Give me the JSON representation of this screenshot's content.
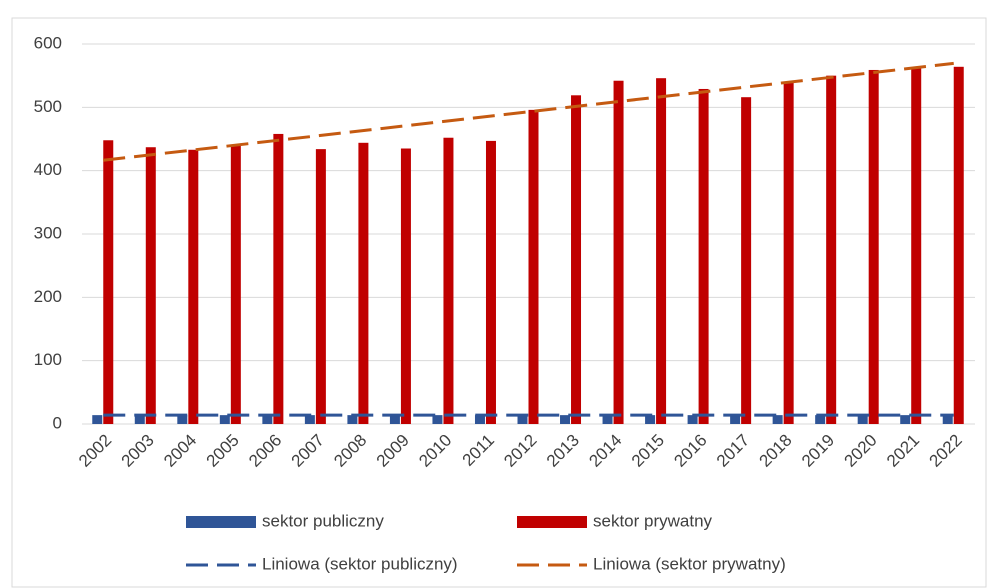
{
  "chart_data": {
    "type": "bar",
    "categories": [
      "2002",
      "2003",
      "2004",
      "2005",
      "2006",
      "2007",
      "2008",
      "2009",
      "2010",
      "2011",
      "2012",
      "2013",
      "2014",
      "2015",
      "2016",
      "2017",
      "2018",
      "2019",
      "2020",
      "2021",
      "2022"
    ],
    "series": [
      {
        "name": "sektor publiczny",
        "color": "#2f5597",
        "values": [
          14,
          14,
          14,
          14,
          14,
          14,
          14,
          14,
          14,
          14,
          14,
          14,
          14,
          14,
          14,
          14,
          14,
          14,
          14,
          14,
          14
        ],
        "trendline": {
          "name": "Liniowa (sektor publiczny)",
          "color": "#2f5597"
        }
      },
      {
        "name": "sektor prywatny",
        "color": "#c00000",
        "values": [
          448,
          437,
          433,
          441,
          458,
          434,
          444,
          435,
          452,
          447,
          496,
          519,
          542,
          546,
          529,
          516,
          539,
          550,
          559,
          563,
          564
        ],
        "trendline": {
          "name": "Liniowa (sektor prywatny)",
          "color": "#c55a11"
        }
      }
    ],
    "ylim": [
      0,
      600
    ],
    "yticks": [
      0,
      100,
      200,
      300,
      400,
      500,
      600
    ],
    "grid": true
  }
}
